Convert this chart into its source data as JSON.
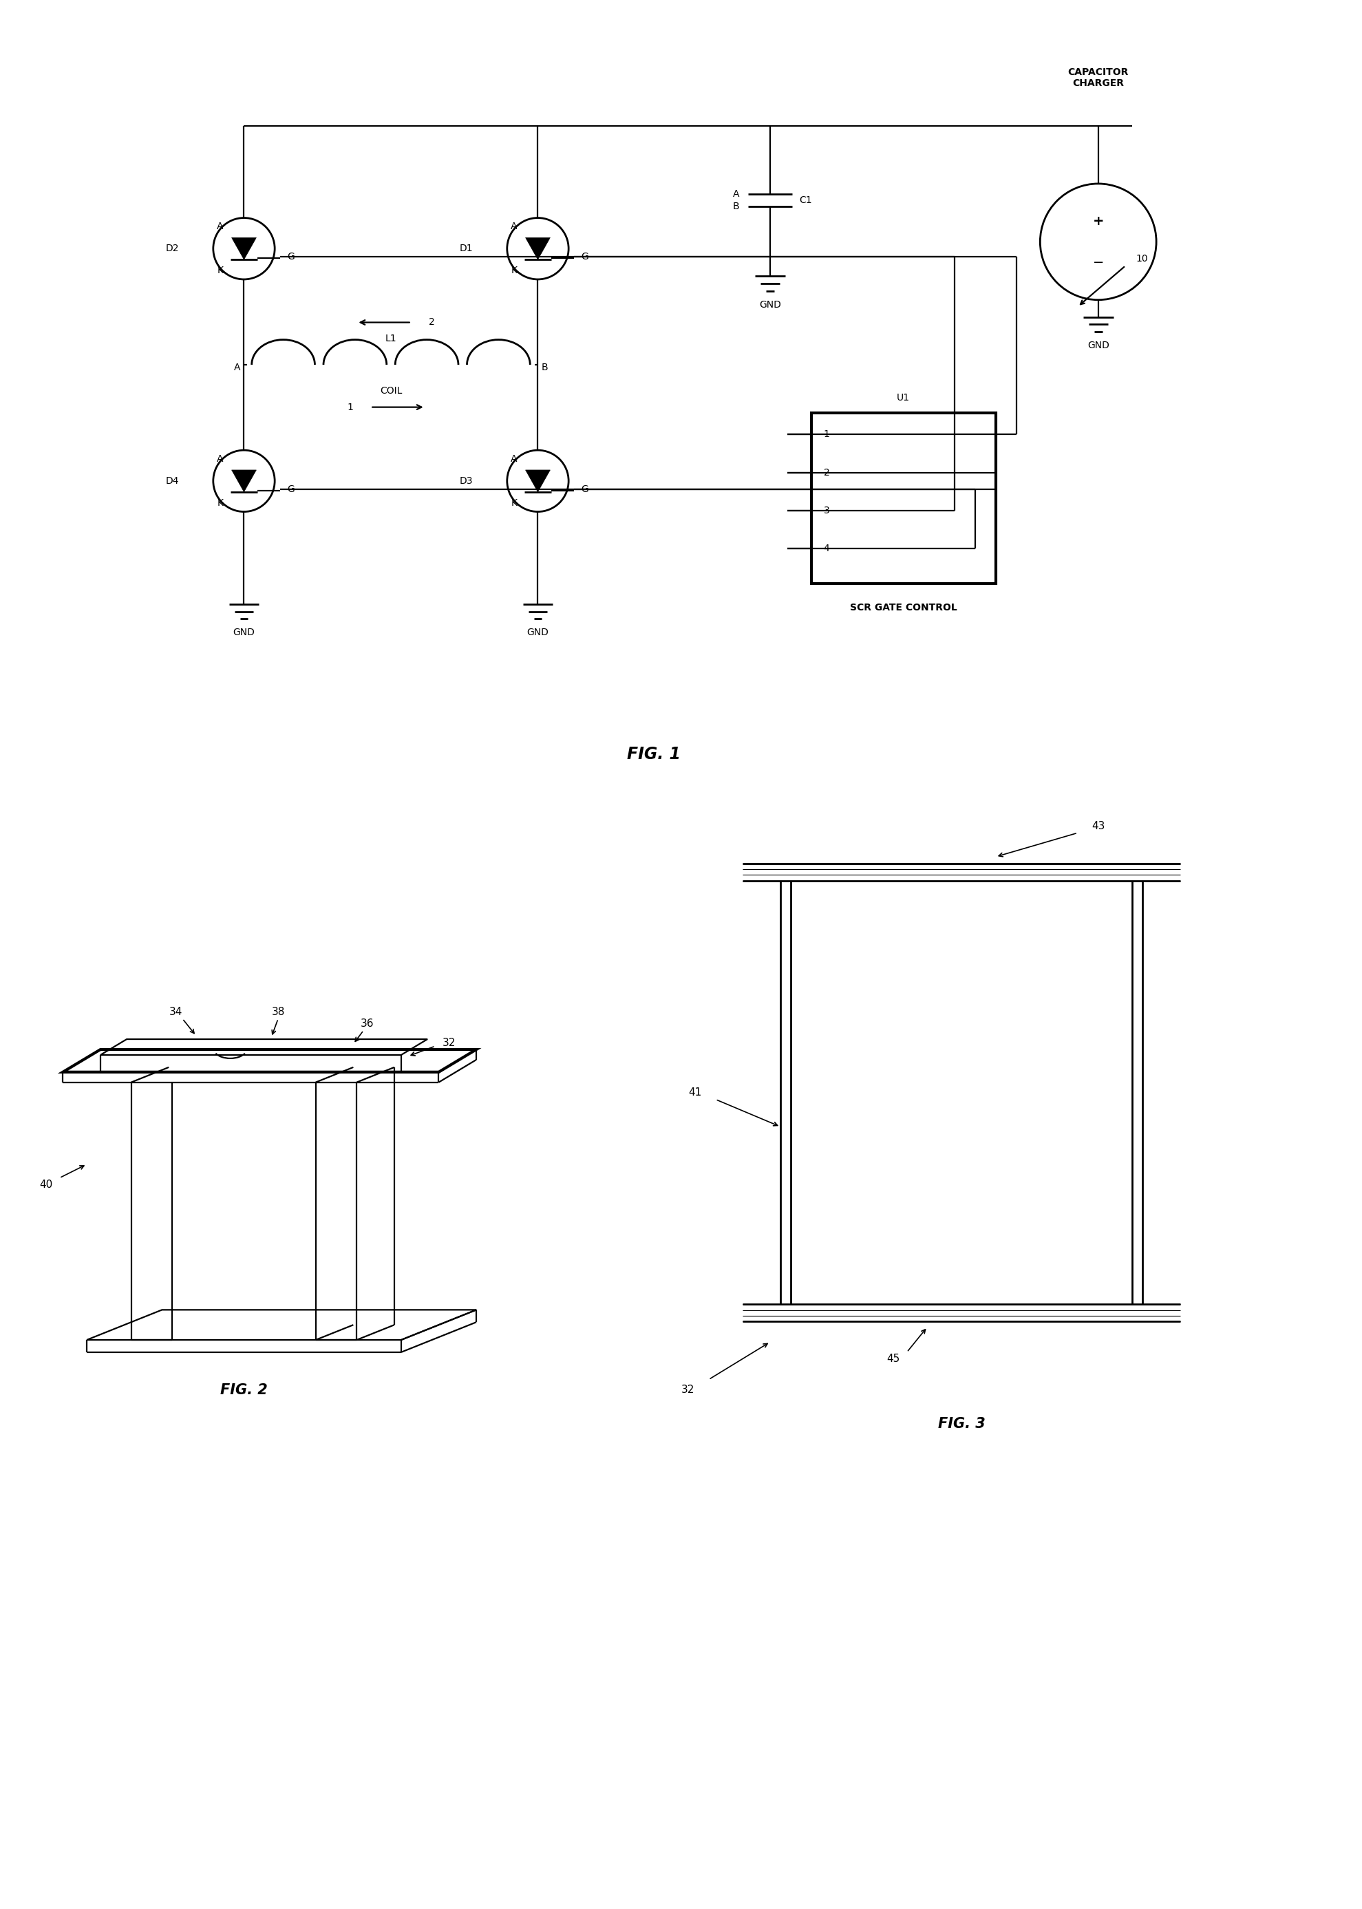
{
  "bg_color": "#ffffff",
  "line_color": "#000000",
  "fig1_title": "FIG. 1",
  "fig2_title": "FIG. 2",
  "fig3_title": "FIG. 3",
  "capacitor_charger_label": "CAPACITOR\nCHARGER",
  "scr_gate_label": "SCR GATE CONTROL",
  "u1_label": "U1",
  "coil_label": "COIL",
  "l1_label": "L1",
  "c1_label": "C1",
  "d1_label": "D1",
  "d2_label": "D2",
  "d3_label": "D3",
  "d4_label": "D4",
  "num_10": "10",
  "num_32_1": "32",
  "num_32_2": "32",
  "num_34": "34",
  "num_36": "36",
  "num_38": "38",
  "num_40": "40",
  "num_41": "41",
  "num_43": "43",
  "num_45": "45"
}
